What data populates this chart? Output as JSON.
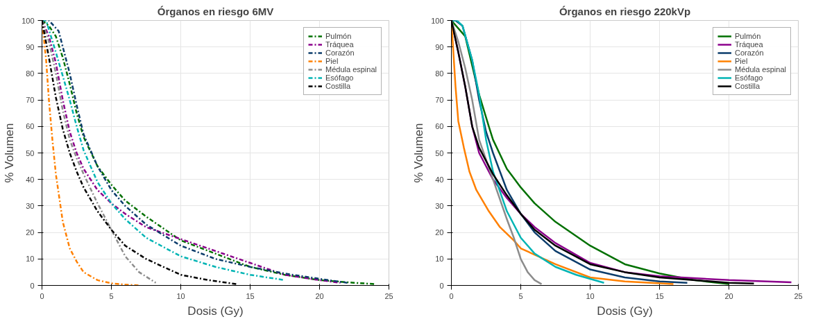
{
  "chart_data": [
    {
      "type": "line",
      "title": "Órganos en riesgo 6MV",
      "xlabel": "Dosis (Gy)",
      "ylabel": "% Volumen",
      "xlim": [
        0,
        25
      ],
      "ylim": [
        0,
        100
      ],
      "xticks": [
        0,
        5,
        10,
        15,
        20,
        25
      ],
      "yticks": [
        0,
        10,
        20,
        30,
        40,
        50,
        60,
        70,
        80,
        90,
        100
      ],
      "grid": true,
      "legend": "top right",
      "line_style": "dashed",
      "marker": "none",
      "series": [
        {
          "name": "Pulmón",
          "color": "#007000",
          "x": [
            0,
            0.5,
            1,
            1.5,
            2,
            2.5,
            3,
            4,
            5,
            6,
            7.5,
            10,
            12.5,
            15,
            17.5,
            20,
            22.5,
            24
          ],
          "values": [
            100,
            98,
            94,
            86,
            76,
            65,
            56,
            45,
            38,
            32,
            26,
            17,
            12,
            7,
            4,
            2,
            1,
            0.5
          ]
        },
        {
          "name": "Tráquea",
          "color": "#8b008b",
          "x": [
            0,
            0.5,
            1,
            1.5,
            2,
            2.5,
            3,
            4,
            5,
            6,
            7.5,
            10,
            12.5,
            15,
            17.5,
            20,
            21.5
          ],
          "values": [
            100,
            94,
            84,
            70,
            58,
            50,
            44,
            36,
            31,
            27,
            22,
            17.5,
            13,
            8.5,
            4,
            2,
            1
          ]
        },
        {
          "name": "Corazón",
          "color": "#0b3c6b",
          "x": [
            0,
            0.5,
            1.2,
            1.5,
            2,
            2.5,
            3,
            4,
            5,
            6,
            7.5,
            10,
            12.5,
            15,
            17.5,
            20,
            22
          ],
          "values": [
            100,
            100,
            96,
            90,
            80,
            68,
            57,
            45,
            36,
            30,
            23,
            15,
            10,
            7,
            4.5,
            2.5,
            1
          ]
        },
        {
          "name": "Piel",
          "color": "#ff8000",
          "x": [
            0,
            0.3,
            0.5,
            0.75,
            1,
            1.5,
            2,
            2.5,
            3,
            4,
            5,
            6,
            7
          ],
          "values": [
            100,
            85,
            70,
            55,
            42,
            24,
            14,
            9,
            5,
            2,
            0.8,
            0.3,
            0
          ]
        },
        {
          "name": "Médula espinal",
          "color": "#8c8c8c",
          "x": [
            0,
            0.5,
            1,
            1.5,
            2,
            2.5,
            3,
            4,
            5,
            6,
            7,
            8.2
          ],
          "values": [
            100,
            92,
            80,
            66,
            55,
            48,
            42,
            31,
            21,
            11,
            5,
            1
          ]
        },
        {
          "name": "Esófago",
          "color": "#00b4b4",
          "x": [
            0,
            0.3,
            1,
            1.5,
            2,
            2.5,
            3,
            4,
            5,
            6,
            7.5,
            10,
            12.5,
            15,
            17.5
          ],
          "values": [
            100,
            100,
            88,
            79,
            70,
            60,
            51,
            39,
            31,
            25,
            18,
            11,
            7,
            4,
            2
          ]
        },
        {
          "name": "Costilla",
          "color": "#000000",
          "x": [
            0,
            0.5,
            1,
            1.5,
            2,
            2.5,
            3,
            4,
            5,
            6,
            7.5,
            10,
            12,
            14
          ],
          "values": [
            100,
            86,
            71,
            59,
            50,
            43,
            37,
            28,
            21,
            15,
            10,
            4,
            2,
            0.5
          ]
        }
      ]
    },
    {
      "type": "line",
      "title": "Órganos en riesgo 220kVp",
      "xlabel": "Dosis (Gy)",
      "ylabel": "% Volumen",
      "xlim": [
        0,
        25
      ],
      "ylim": [
        0,
        100
      ],
      "xticks": [
        0,
        5,
        10,
        15,
        20,
        25
      ],
      "yticks": [
        0,
        10,
        20,
        30,
        40,
        50,
        60,
        70,
        80,
        90,
        100
      ],
      "grid": true,
      "legend": "top right",
      "line_style": "solid",
      "marker": "none",
      "series": [
        {
          "name": "Pulmón",
          "color": "#007000",
          "x": [
            0,
            1,
            2,
            2.7,
            3,
            4,
            5,
            6,
            7.5,
            10,
            12.5,
            15,
            17.5,
            20
          ],
          "values": [
            100,
            94,
            72,
            60,
            55,
            44,
            37,
            31,
            24,
            15,
            8,
            4.5,
            2,
            0.5
          ]
        },
        {
          "name": "Tráquea",
          "color": "#8b008b",
          "x": [
            0,
            0.5,
            1,
            1.5,
            2,
            3,
            4,
            5,
            6,
            7.5,
            10,
            12.5,
            15,
            20,
            24.5
          ],
          "values": [
            100,
            88,
            75,
            60,
            50,
            40,
            33,
            27,
            22,
            16,
            8.5,
            5,
            3.5,
            2,
            1.2
          ]
        },
        {
          "name": "Corazón",
          "color": "#0b3c6b",
          "x": [
            0,
            0.3,
            0.8,
            1.5,
            2,
            2.5,
            3,
            4,
            5,
            6,
            7.5,
            10,
            12.5,
            15,
            17
          ],
          "values": [
            100,
            100,
            98,
            85,
            70,
            58,
            50,
            36,
            27,
            20,
            13,
            6,
            3,
            1.5,
            1
          ]
        },
        {
          "name": "Piel",
          "color": "#ff8000",
          "x": [
            0,
            0.3,
            0.5,
            0.9,
            1.3,
            1.8,
            2.7,
            3.5,
            4.5,
            5,
            7.5,
            10,
            12.5,
            16
          ],
          "values": [
            100,
            75,
            62,
            52,
            43,
            36,
            28,
            22,
            17,
            14,
            8,
            3,
            1.5,
            0.5
          ]
        },
        {
          "name": "Médula espinal",
          "color": "#8c8c8c",
          "x": [
            0,
            0.5,
            1,
            1.5,
            2,
            3,
            4,
            4.5,
            5,
            5.5,
            6,
            6.5
          ],
          "values": [
            100,
            92,
            82,
            70,
            55,
            40,
            25,
            18,
            10,
            5,
            2,
            0.5
          ]
        },
        {
          "name": "Esófago",
          "color": "#00b4b4",
          "x": [
            0,
            0.4,
            0.8,
            1.5,
            2,
            2.5,
            3,
            4,
            5,
            6,
            7.5,
            9,
            11
          ],
          "values": [
            100,
            100,
            98,
            85,
            72,
            55,
            43,
            28,
            18,
            12,
            7,
            4,
            1
          ]
        },
        {
          "name": "Costilla",
          "color": "#000000",
          "x": [
            0,
            0.5,
            1,
            1.5,
            2,
            3,
            4,
            5,
            6,
            7.5,
            10,
            12.5,
            15,
            20,
            21.8
          ],
          "values": [
            100,
            88,
            75,
            60,
            52,
            42,
            34,
            27,
            21,
            15,
            8,
            5,
            3,
            1,
            0.7
          ]
        }
      ]
    }
  ]
}
